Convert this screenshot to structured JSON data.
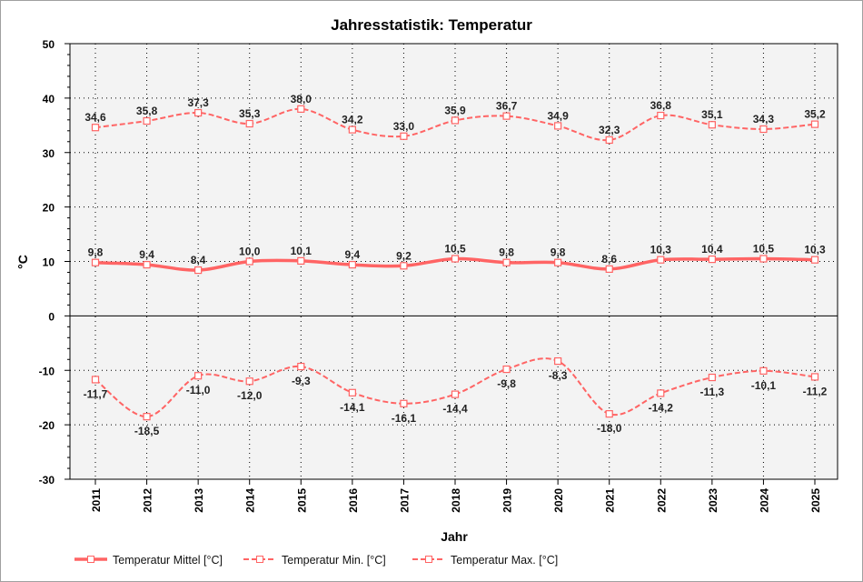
{
  "chart_data": {
    "type": "line",
    "title": "Jahresstatistik: Temperatur",
    "xlabel": "Jahr",
    "ylabel": "°C",
    "ylim": [
      -30,
      50
    ],
    "yticks": [
      -30,
      -20,
      -10,
      0,
      10,
      20,
      30,
      40,
      50
    ],
    "grid": true,
    "legend_position": "bottom",
    "categories": [
      "2011",
      "2012",
      "2013",
      "2014",
      "2015",
      "2016",
      "2017",
      "2018",
      "2019",
      "2020",
      "2021",
      "2022",
      "2023",
      "2024",
      "2025"
    ],
    "series": [
      {
        "name": "Temperatur Mittel [°C]",
        "style": "solid",
        "color": "#ff6464",
        "values": [
          9.8,
          9.4,
          8.4,
          10.0,
          10.1,
          9.4,
          9.2,
          10.5,
          9.8,
          9.8,
          8.6,
          10.3,
          10.4,
          10.5,
          10.3
        ],
        "labels": [
          "9,8",
          "9,4",
          "8,4",
          "10,0",
          "10,1",
          "9,4",
          "9,2",
          "10,5",
          "9,8",
          "9,8",
          "8,6",
          "10,3",
          "10,4",
          "10,5",
          "10,3"
        ]
      },
      {
        "name": "Temperatur Min. [°C]",
        "style": "dashed",
        "color": "#ff6464",
        "values": [
          -11.7,
          -18.5,
          -11.0,
          -12.0,
          -9.3,
          -14.1,
          -16.1,
          -14.4,
          -9.8,
          -8.3,
          -18.0,
          -14.2,
          -11.3,
          -10.1,
          -11.2
        ],
        "labels": [
          "-11,7",
          "-18,5",
          "-11,0",
          "-12,0",
          "-9,3",
          "-14,1",
          "-16,1",
          "-14,4",
          "-9,8",
          "-8,3",
          "-18,0",
          "-14,2",
          "-11,3",
          "-10,1",
          "-11,2"
        ]
      },
      {
        "name": "Temperatur Max. [°C]",
        "style": "dashed",
        "color": "#ff6464",
        "values": [
          34.6,
          35.8,
          37.3,
          35.3,
          38.0,
          34.2,
          33.0,
          35.9,
          36.7,
          34.9,
          32.3,
          36.8,
          35.1,
          34.3,
          35.2
        ],
        "labels": [
          "34,6",
          "35,8",
          "37,3",
          "35,3",
          "38,0",
          "34,2",
          "33,0",
          "35,9",
          "36,7",
          "34,9",
          "32,3",
          "36,8",
          "35,1",
          "34,3",
          "35,2"
        ]
      }
    ],
    "plot_background": "#f3f3f3"
  }
}
